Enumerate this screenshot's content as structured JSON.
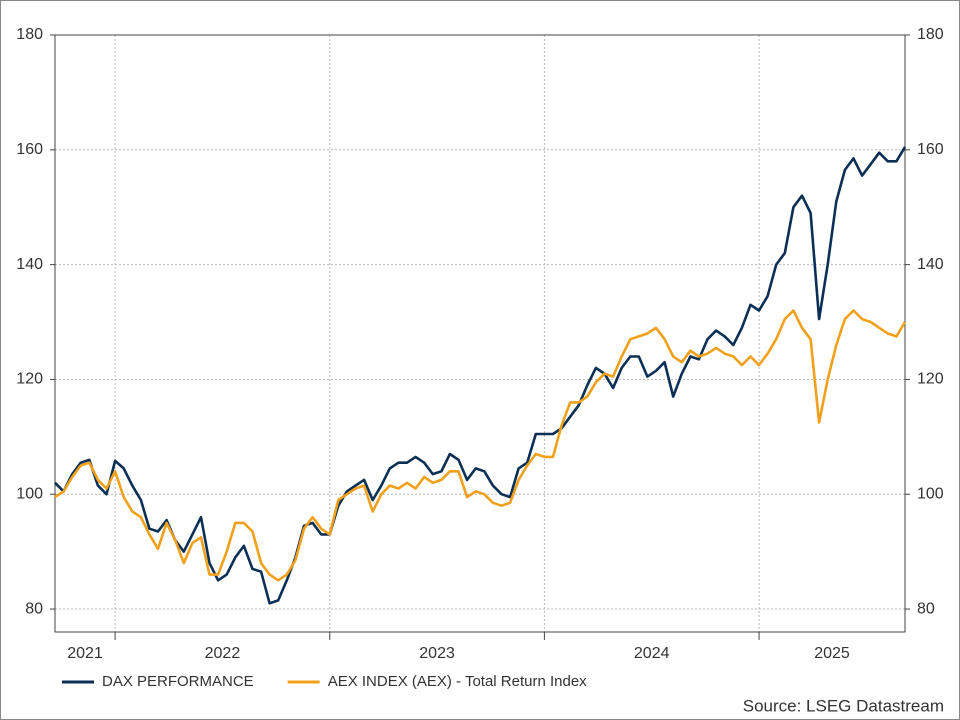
{
  "chart_data": {
    "type": "line",
    "x": [
      2021.72,
      2021.76,
      2021.8,
      2021.84,
      2021.88,
      2021.92,
      2021.96,
      2022,
      2022.04,
      2022.08,
      2022.12,
      2022.16,
      2022.2,
      2022.24,
      2022.28,
      2022.32,
      2022.36,
      2022.4,
      2022.44,
      2022.48,
      2022.52,
      2022.56,
      2022.6,
      2022.64,
      2022.68,
      2022.72,
      2022.76,
      2022.8,
      2022.84,
      2022.88,
      2022.92,
      2022.96,
      2023,
      2023.04,
      2023.08,
      2023.12,
      2023.16,
      2023.2,
      2023.24,
      2023.28,
      2023.32,
      2023.36,
      2023.4,
      2023.44,
      2023.48,
      2023.52,
      2023.56,
      2023.6,
      2023.64,
      2023.68,
      2023.72,
      2023.76,
      2023.8,
      2023.84,
      2023.88,
      2023.92,
      2023.96,
      2024,
      2024.04,
      2024.08,
      2024.12,
      2024.16,
      2024.2,
      2024.24,
      2024.28,
      2024.32,
      2024.36,
      2024.4,
      2024.44,
      2024.48,
      2024.52,
      2024.56,
      2024.6,
      2024.64,
      2024.68,
      2024.72,
      2024.76,
      2024.8,
      2024.84,
      2024.88,
      2024.92,
      2024.96,
      2025,
      2025.04,
      2025.08,
      2025.12,
      2025.16,
      2025.2,
      2025.24,
      2025.28,
      2025.32,
      2025.36,
      2025.4,
      2025.44,
      2025.48,
      2025.52,
      2025.56,
      2025.6,
      2025.64,
      2025.68
    ],
    "series": [
      {
        "name": "DAX PERFORMANCE",
        "color": "#0b2f55",
        "values": [
          102,
          100.5,
          103.5,
          105.5,
          106,
          101.5,
          100,
          105.8,
          104.5,
          101.5,
          99,
          94,
          93.5,
          95.5,
          92,
          90,
          93,
          96,
          88,
          85,
          86,
          89,
          91,
          87,
          86.5,
          81,
          81.5,
          85,
          89,
          94.5,
          95,
          93,
          93,
          98,
          100.5,
          101.5,
          102.5,
          99,
          101.5,
          104.5,
          105.5,
          105.5,
          106.5,
          105.5,
          103.5,
          104,
          107,
          106,
          102.5,
          104.5,
          104,
          101.5,
          100,
          99.5,
          104.5,
          105.5,
          110.5,
          110.5,
          110.5,
          111.5,
          113.5,
          115.5,
          119,
          122,
          121,
          118.5,
          122,
          124,
          124,
          120.5,
          121.5,
          123,
          117,
          121,
          124,
          123.5,
          127,
          128.5,
          127.5,
          126,
          129,
          133,
          132,
          134.5,
          140,
          142,
          150,
          152,
          149,
          130.5,
          140,
          151,
          156.5,
          158.5,
          155.5,
          157.5,
          159.5,
          158,
          158,
          160.5
        ]
      },
      {
        "name": "AEX INDEX (AEX) - Total Return Index",
        "color": "#f0a01b",
        "values": [
          99.5,
          100.5,
          103,
          105,
          105.5,
          102.5,
          101,
          104,
          99.5,
          97,
          96,
          93,
          90.5,
          95,
          92,
          88,
          91.5,
          92.5,
          86,
          86,
          90,
          95,
          95,
          93.5,
          88,
          86,
          85,
          86,
          88.5,
          94,
          96,
          94,
          93,
          99,
          100,
          101,
          101.5,
          97,
          100,
          101.5,
          101,
          102,
          101,
          103,
          102,
          102.5,
          104,
          104,
          99.5,
          100.5,
          100,
          98.5,
          98,
          98.5,
          102.5,
          105,
          107,
          106.5,
          106.5,
          112,
          116,
          116,
          117,
          119.5,
          121,
          120.5,
          124,
          127,
          127.5,
          128,
          129,
          127,
          124,
          123,
          125,
          124,
          124.5,
          125.5,
          124.5,
          124,
          122.5,
          124,
          122.5,
          124.5,
          127,
          130.5,
          132,
          129,
          127,
          112.5,
          120,
          126,
          130.5,
          132,
          130.5,
          130,
          129,
          128,
          127.5,
          130
        ]
      }
    ],
    "xlim": [
      2021.72,
      2025.68
    ],
    "xticks": [
      {
        "value": 2021,
        "label": "2021"
      },
      {
        "value": 2022,
        "label": "2022"
      },
      {
        "value": 2023,
        "label": "2023"
      },
      {
        "value": 2024,
        "label": "2024"
      },
      {
        "value": 2025,
        "label": "2025"
      }
    ],
    "ylim": [
      76,
      180
    ],
    "yticks": [
      80,
      100,
      120,
      140,
      160,
      180
    ],
    "grid": true,
    "source": "Source: LSEG Datastream"
  }
}
